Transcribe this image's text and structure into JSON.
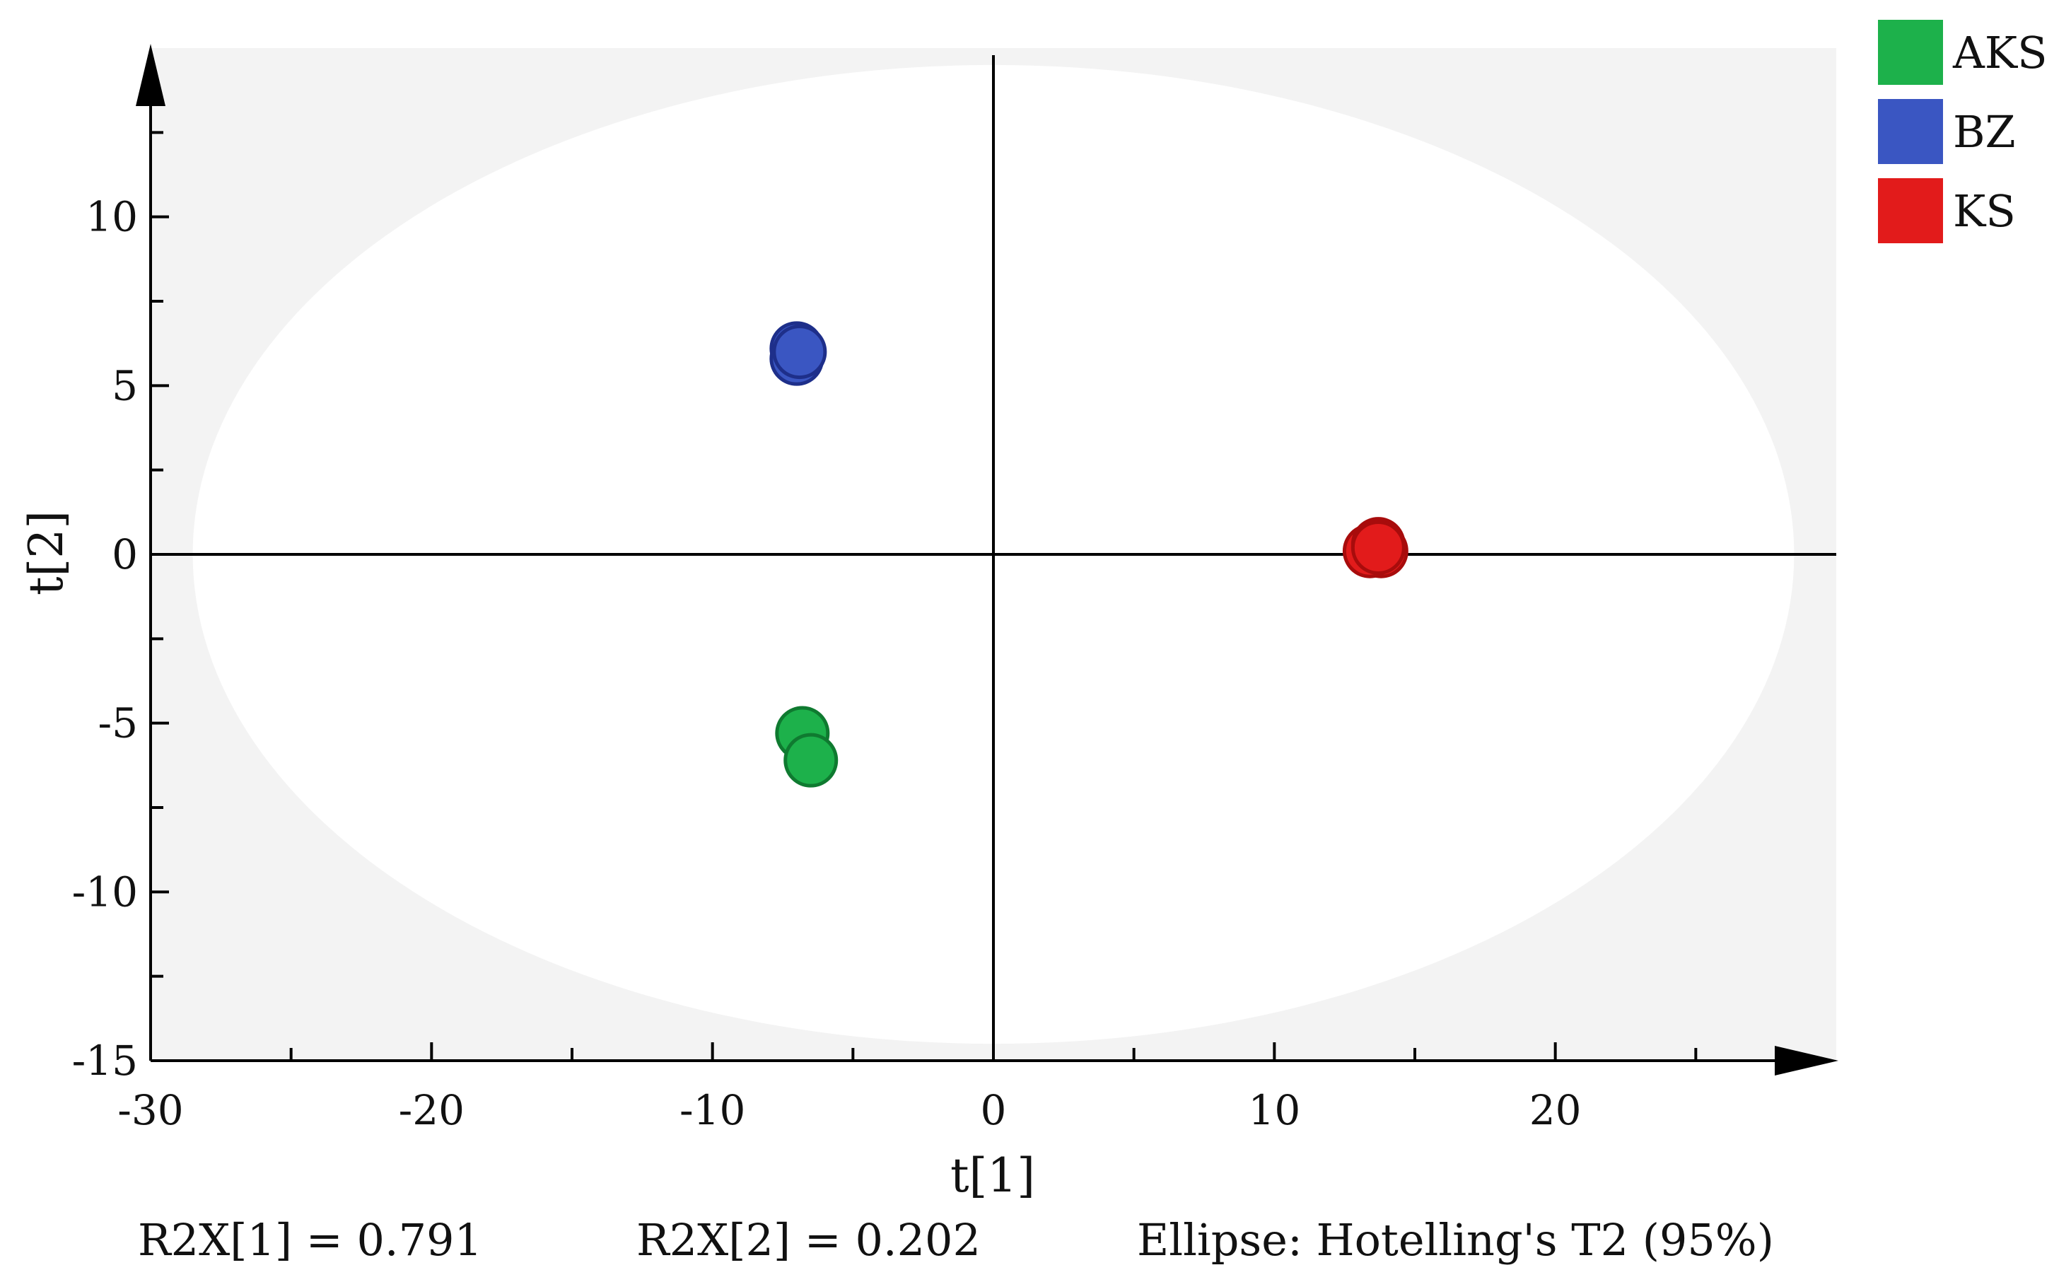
{
  "chart_data": {
    "type": "scatter",
    "xlabel": "t[1]",
    "ylabel": "t[2]",
    "xlim": [
      -30,
      30
    ],
    "ylim": [
      -15,
      15
    ],
    "x_ticks": [
      -30,
      -20,
      -10,
      0,
      10,
      20
    ],
    "y_ticks": [
      -15,
      -10,
      -5,
      0,
      5,
      10
    ],
    "grid": false,
    "legend_position": "top-right",
    "series": [
      {
        "name": "AKS",
        "color": "#1db14b",
        "stroke": "#0f7a30",
        "points": [
          [
            -6.8,
            -5.3
          ],
          [
            -6.5,
            -6.1
          ]
        ]
      },
      {
        "name": "BZ",
        "color": "#3a56c2",
        "stroke": "#1e2f8a",
        "points": [
          [
            -7.0,
            6.1
          ],
          [
            -7.0,
            5.8
          ],
          [
            -6.9,
            6.0
          ]
        ]
      },
      {
        "name": "KS",
        "color": "#e21b1b",
        "stroke": "#a80c0c",
        "points": [
          [
            13.6,
            0.2
          ],
          [
            13.8,
            0.1
          ],
          [
            13.4,
            0.1
          ],
          [
            13.7,
            0.3
          ],
          [
            13.7,
            0.2
          ]
        ]
      }
    ],
    "ellipse": {
      "label": "Hotelling's T2 (95%)",
      "rx": 28.5,
      "ry": 14.5,
      "center": [
        0,
        0
      ]
    },
    "stats": {
      "r2x1": "R2X[1] = 0.791",
      "r2x2": "R2X[2] = 0.202",
      "ellipse_text": "Ellipse: Hotelling's T2 (95%)"
    },
    "colors": {
      "plot_bg": "#f3f3f3",
      "ellipse_fill": "#ffffff",
      "axis": "#000000"
    }
  }
}
